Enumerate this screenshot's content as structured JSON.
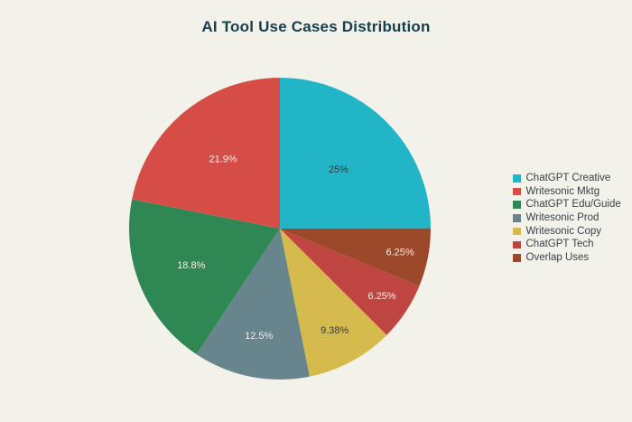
{
  "chart_data": {
    "type": "pie",
    "title": "AI Tool Use Cases Distribution",
    "legend_position": "right",
    "background_color": "#f2f1ea",
    "title_color": "#17404a",
    "legend_text_color": "#3a4245",
    "slices": [
      {
        "label": "ChatGPT Creative",
        "value": 25,
        "display": "25%",
        "color": "#22b5c8",
        "label_text_color": "#2f3b40"
      },
      {
        "label": "Writesonic Mktg",
        "value": 21.9,
        "display": "21.9%",
        "color": "#d64c46",
        "label_text_color": "#f2efe9"
      },
      {
        "label": "ChatGPT Edu/Guide",
        "value": 18.8,
        "display": "18.8%",
        "color": "#2f8754",
        "label_text_color": "#f2efe9"
      },
      {
        "label": "Writesonic Prod",
        "value": 12.5,
        "display": "12.5%",
        "color": "#68858d",
        "label_text_color": "#f2efe9"
      },
      {
        "label": "Writesonic Copy",
        "value": 9.38,
        "display": "9.38%",
        "color": "#d5ba4e",
        "label_text_color": "#2f3b40"
      },
      {
        "label": "ChatGPT Tech",
        "value": 6.25,
        "display": "6.25%",
        "color": "#bf4640",
        "label_text_color": "#f2efe9"
      },
      {
        "label": "Overlap Uses",
        "value": 6.25,
        "display": "6.25%",
        "color": "#9c482a",
        "label_text_color": "#f2efe9"
      }
    ]
  }
}
